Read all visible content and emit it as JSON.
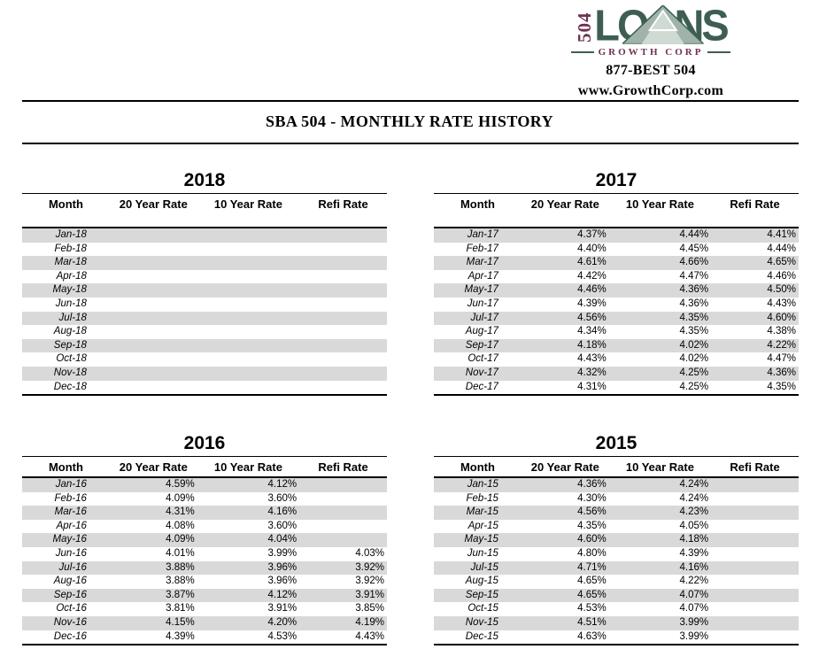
{
  "brand": {
    "number": "504",
    "name": "LOANS",
    "subtitle": "GROWTH CORP",
    "phone": "877-BEST 504",
    "website": "www.GrowthCorp.com"
  },
  "page_title": "SBA 504 - MONTHLY RATE HISTORY",
  "columns": [
    "Month",
    "20 Year Rate",
    "10 Year Rate",
    "Refi Rate"
  ],
  "colors": {
    "maroon": "#6F3150",
    "green": "#3E5E52",
    "row_band_gray": "#D9D9D9"
  },
  "tables": [
    {
      "year": "2018",
      "rows": [
        [
          "Jan-18",
          "",
          "",
          ""
        ],
        [
          "Feb-18",
          "",
          "",
          ""
        ],
        [
          "Mar-18",
          "",
          "",
          ""
        ],
        [
          "Apr-18",
          "",
          "",
          ""
        ],
        [
          "May-18",
          "",
          "",
          ""
        ],
        [
          "Jun-18",
          "",
          "",
          ""
        ],
        [
          "Jul-18",
          "",
          "",
          ""
        ],
        [
          "Aug-18",
          "",
          "",
          ""
        ],
        [
          "Sep-18",
          "",
          "",
          ""
        ],
        [
          "Oct-18",
          "",
          "",
          ""
        ],
        [
          "Nov-18",
          "",
          "",
          ""
        ],
        [
          "Dec-18",
          "",
          "",
          ""
        ]
      ]
    },
    {
      "year": "2017",
      "rows": [
        [
          "Jan-17",
          "4.37%",
          "4.44%",
          "4.41%"
        ],
        [
          "Feb-17",
          "4.40%",
          "4.45%",
          "4.44%"
        ],
        [
          "Mar-17",
          "4.61%",
          "4.66%",
          "4.65%"
        ],
        [
          "Apr-17",
          "4.42%",
          "4.47%",
          "4.46%"
        ],
        [
          "May-17",
          "4.46%",
          "4.36%",
          "4.50%"
        ],
        [
          "Jun-17",
          "4.39%",
          "4.36%",
          "4.43%"
        ],
        [
          "Jul-17",
          "4.56%",
          "4.35%",
          "4.60%"
        ],
        [
          "Aug-17",
          "4.34%",
          "4.35%",
          "4.38%"
        ],
        [
          "Sep-17",
          "4.18%",
          "4.02%",
          "4.22%"
        ],
        [
          "Oct-17",
          "4.43%",
          "4.02%",
          "4.47%"
        ],
        [
          "Nov-17",
          "4.32%",
          "4.25%",
          "4.36%"
        ],
        [
          "Dec-17",
          "4.31%",
          "4.25%",
          "4.35%"
        ]
      ]
    },
    {
      "year": "2016",
      "rows": [
        [
          "Jan-16",
          "4.59%",
          "4.12%",
          ""
        ],
        [
          "Feb-16",
          "4.09%",
          "3.60%",
          ""
        ],
        [
          "Mar-16",
          "4.31%",
          "4.16%",
          ""
        ],
        [
          "Apr-16",
          "4.08%",
          "3.60%",
          ""
        ],
        [
          "May-16",
          "4.09%",
          "4.04%",
          ""
        ],
        [
          "Jun-16",
          "4.01%",
          "3.99%",
          "4.03%"
        ],
        [
          "Jul-16",
          "3.88%",
          "3.96%",
          "3.92%"
        ],
        [
          "Aug-16",
          "3.88%",
          "3.96%",
          "3.92%"
        ],
        [
          "Sep-16",
          "3.87%",
          "4.12%",
          "3.91%"
        ],
        [
          "Oct-16",
          "3.81%",
          "3.91%",
          "3.85%"
        ],
        [
          "Nov-16",
          "4.15%",
          "4.20%",
          "4.19%"
        ],
        [
          "Dec-16",
          "4.39%",
          "4.53%",
          "4.43%"
        ]
      ]
    },
    {
      "year": "2015",
      "rows": [
        [
          "Jan-15",
          "4.36%",
          "4.24%",
          ""
        ],
        [
          "Feb-15",
          "4.30%",
          "4.24%",
          ""
        ],
        [
          "Mar-15",
          "4.56%",
          "4.23%",
          ""
        ],
        [
          "Apr-15",
          "4.35%",
          "4.05%",
          ""
        ],
        [
          "May-15",
          "4.60%",
          "4.18%",
          ""
        ],
        [
          "Jun-15",
          "4.80%",
          "4.39%",
          ""
        ],
        [
          "Jul-15",
          "4.71%",
          "4.16%",
          ""
        ],
        [
          "Aug-15",
          "4.65%",
          "4.22%",
          ""
        ],
        [
          "Sep-15",
          "4.65%",
          "4.07%",
          ""
        ],
        [
          "Oct-15",
          "4.53%",
          "4.07%",
          ""
        ],
        [
          "Nov-15",
          "4.51%",
          "3.99%",
          ""
        ],
        [
          "Dec-15",
          "4.63%",
          "3.99%",
          ""
        ]
      ]
    }
  ]
}
